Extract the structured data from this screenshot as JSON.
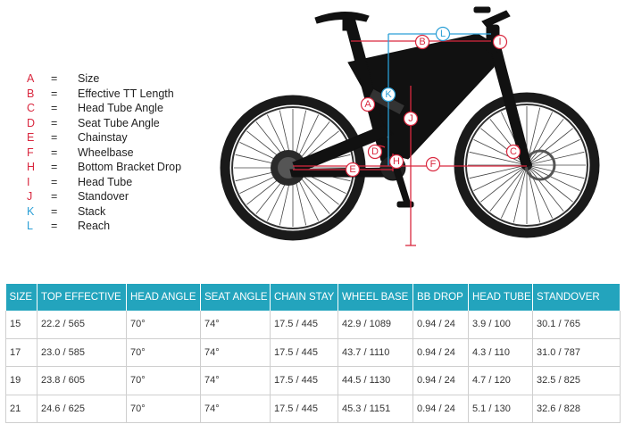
{
  "legend": [
    {
      "letter": "A",
      "eq": "=",
      "label": "Size",
      "color": "#d9283f"
    },
    {
      "letter": "B",
      "eq": "=",
      "label": "Effective TT Length",
      "color": "#d9283f"
    },
    {
      "letter": "C",
      "eq": "=",
      "label": "Head Tube Angle",
      "color": "#d9283f"
    },
    {
      "letter": "D",
      "eq": "=",
      "label": "Seat Tube Angle",
      "color": "#d9283f"
    },
    {
      "letter": "E",
      "eq": "=",
      "label": "Chainstay",
      "color": "#d9283f"
    },
    {
      "letter": "F",
      "eq": "=",
      "label": "Wheelbase",
      "color": "#d9283f"
    },
    {
      "letter": "H",
      "eq": "=",
      "label": "Bottom Bracket Drop",
      "color": "#d9283f"
    },
    {
      "letter": "I",
      "eq": "=",
      "label": "Head Tube",
      "color": "#d9283f"
    },
    {
      "letter": "J",
      "eq": "=",
      "label": "Standover",
      "color": "#d9283f"
    },
    {
      "letter": "K",
      "eq": "=",
      "label": "Stack",
      "color": "#2a9fd6"
    },
    {
      "letter": "L",
      "eq": "=",
      "label": "Reach",
      "color": "#2a9fd6"
    }
  ],
  "diagram": {
    "markers": {
      "A": "A",
      "B": "B",
      "C": "C",
      "D": "D",
      "E": "E",
      "F": "F",
      "H": "H",
      "I": "I",
      "J": "J",
      "K": "K",
      "L": "L"
    },
    "colors": {
      "red": "#d9283f",
      "blue": "#2a9fd6",
      "frame": "#111111",
      "tire": "#1a1a1a"
    }
  },
  "table": {
    "headers": [
      "SIZE",
      "TOP EFFECTIVE",
      "HEAD ANGLE",
      "SEAT ANGLE",
      "CHAIN STAY",
      "WHEEL BASE",
      "BB DROP",
      "HEAD TUBE",
      "STANDOVER"
    ],
    "rows": [
      [
        "15",
        "22.2 / 565",
        "70°",
        "74°",
        "17.5 / 445",
        "42.9 / 1089",
        "0.94 / 24",
        "3.9 / 100",
        "30.1 / 765"
      ],
      [
        "17",
        "23.0 / 585",
        "70°",
        "74°",
        "17.5 / 445",
        "43.7 / 1110",
        "0.94 / 24",
        "4.3 / 110",
        "31.0 / 787"
      ],
      [
        "19",
        "23.8 / 605",
        "70°",
        "74°",
        "17.5 / 445",
        "44.5 / 1130",
        "0.94 / 24",
        "4.7 / 120",
        "32.5 / 825"
      ],
      [
        "21",
        "24.6 / 625",
        "70°",
        "74°",
        "17.5 / 445",
        "45.3 / 1151",
        "0.94 / 24",
        "5.1 / 130",
        "32.6 / 828"
      ]
    ],
    "header_color": "#23a4bd"
  }
}
